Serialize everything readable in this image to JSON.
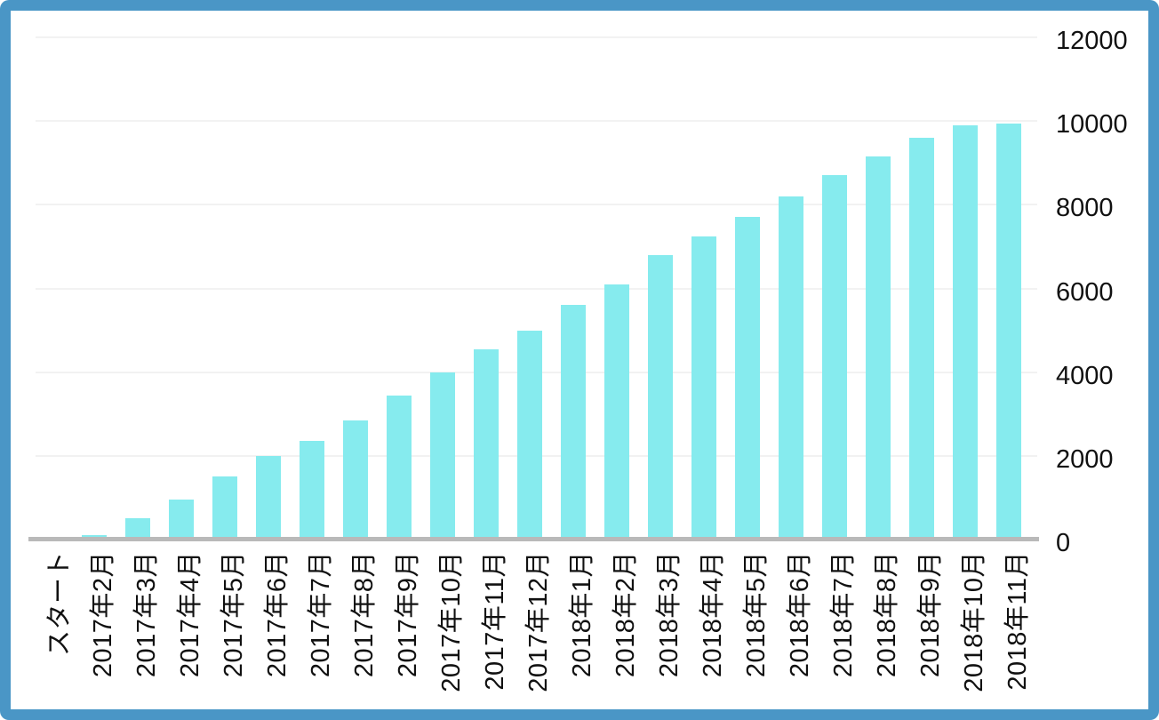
{
  "chart_data": {
    "type": "bar",
    "title": "",
    "xlabel": "",
    "ylabel": "",
    "categories": [
      "スタート",
      "2017年2月",
      "2017年3月",
      "2017年4月",
      "2017年5月",
      "2017年6月",
      "2017年7月",
      "2017年8月",
      "2017年9月",
      "2017年10月",
      "2017年11月",
      "2017年12月",
      "2018年1月",
      "2018年2月",
      "2018年3月",
      "2018年4月",
      "2018年5月",
      "2018年6月",
      "2018年7月",
      "2018年8月",
      "2018年9月",
      "2018年10月",
      "2018年11月"
    ],
    "values": [
      0,
      100,
      500,
      950,
      1500,
      2000,
      2350,
      2850,
      3450,
      4000,
      4550,
      5000,
      5600,
      6100,
      6800,
      7250,
      7700,
      8200,
      8700,
      9150,
      9600,
      9900,
      9950
    ],
    "ylim": [
      0,
      12000
    ],
    "y_ticks": [
      0,
      2000,
      4000,
      6000,
      8000,
      10000,
      12000
    ],
    "y_axis_side": "right",
    "x_label_rotation_degrees": -90,
    "legend": "none",
    "grid": "horizontal",
    "colors": {
      "bar": "#86ebee",
      "frame_border": "#4a96c6",
      "baseline": "#b9b9b9",
      "gridline": "#f2f2f2",
      "text": "#111111",
      "background": "#ffffff"
    }
  }
}
